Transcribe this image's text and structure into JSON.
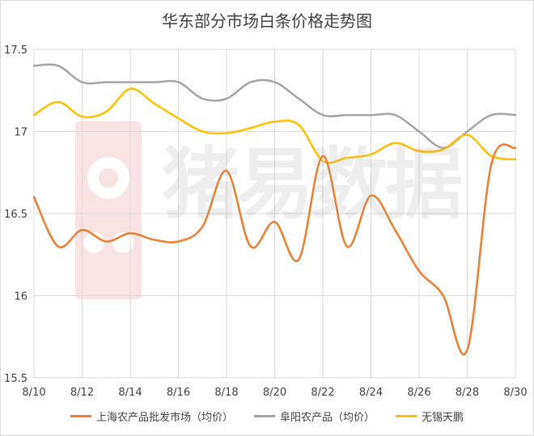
{
  "chart_data": {
    "type": "line",
    "title": "华东部分市场白条价格走势图",
    "categories": [
      "8/10",
      "8/11",
      "8/12",
      "8/13",
      "8/14",
      "8/15",
      "8/16",
      "8/17",
      "8/18",
      "8/19",
      "8/20",
      "8/21",
      "8/22",
      "8/23",
      "8/24",
      "8/25",
      "8/26",
      "8/27",
      "8/28",
      "8/29",
      "8/30"
    ],
    "x_tick_labels": [
      "8/10",
      "8/12",
      "8/14",
      "8/16",
      "8/18",
      "8/20",
      "8/22",
      "8/24",
      "8/26",
      "8/28",
      "8/30"
    ],
    "ylim": [
      15.5,
      17.5
    ],
    "y_ticks": [
      15.5,
      16,
      16.5,
      17,
      17.5
    ],
    "y_tick_labels": [
      "15.5",
      "16",
      "16.5",
      "17",
      "17.5"
    ],
    "grid": true,
    "legend_position": "bottom",
    "series": [
      {
        "name": "上海农产品批发市场（均价）",
        "color": "#ed7d31",
        "values": [
          16.6,
          16.3,
          16.4,
          16.33,
          16.38,
          16.34,
          16.33,
          16.42,
          16.76,
          16.3,
          16.45,
          16.22,
          16.85,
          16.3,
          16.61,
          16.4,
          16.15,
          16.0,
          15.67,
          16.8,
          16.9
        ]
      },
      {
        "name": "阜阳农产品（均价）",
        "color": "#a5a5a5",
        "values": [
          17.4,
          17.4,
          17.3,
          17.3,
          17.3,
          17.3,
          17.3,
          17.2,
          17.2,
          17.3,
          17.3,
          17.2,
          17.1,
          17.1,
          17.1,
          17.1,
          17.0,
          16.9,
          17.0,
          17.1,
          17.1
        ]
      },
      {
        "name": "无锡天鹏",
        "color": "#ffc000",
        "values": [
          17.1,
          17.18,
          17.09,
          17.12,
          17.26,
          17.17,
          17.08,
          17.0,
          16.99,
          17.02,
          17.06,
          17.04,
          16.82,
          16.84,
          16.86,
          16.93,
          16.88,
          16.89,
          16.98,
          16.85,
          16.83
        ]
      }
    ]
  },
  "watermark": {
    "text": "猪易数据"
  }
}
